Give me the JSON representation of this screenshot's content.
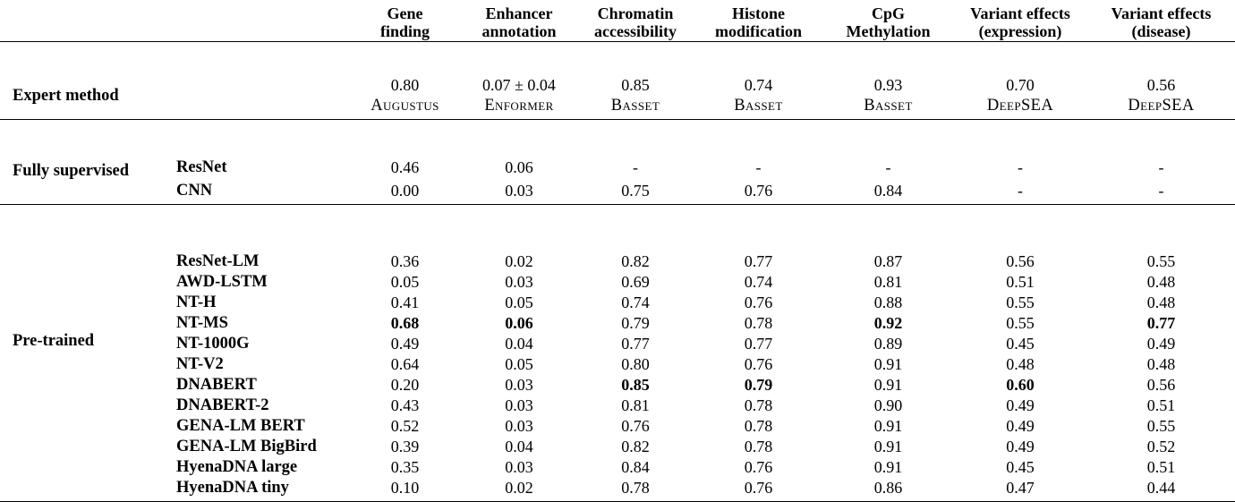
{
  "table": {
    "headers": [
      {
        "l1": "Gene",
        "l2": "finding"
      },
      {
        "l1": "Enhancer",
        "l2": "annotation"
      },
      {
        "l1": "Chromatin",
        "l2": "accessibility"
      },
      {
        "l1": "Histone",
        "l2": "modification"
      },
      {
        "l1": "CpG",
        "l2": "Methylation"
      },
      {
        "l1": "Variant effects",
        "l2": "(expression)"
      },
      {
        "l1": "Variant effects",
        "l2": "(disease)"
      }
    ],
    "expert": {
      "label": "Expert method",
      "cells": [
        {
          "score": "0.80",
          "method": "Augustus"
        },
        {
          "score": "0.07 ± 0.04",
          "method": "Enformer"
        },
        {
          "score": "0.85",
          "method": "Basset"
        },
        {
          "score": "0.74",
          "method": "Basset"
        },
        {
          "score": "0.93",
          "method": "Basset"
        },
        {
          "score": "0.70",
          "method": "DeepSEA"
        },
        {
          "score": "0.56",
          "method": "DeepSEA"
        }
      ]
    },
    "fully_supervised": {
      "label": "Fully supervised",
      "rows": [
        {
          "model": "ResNet",
          "values": [
            "0.46",
            "0.06",
            "-",
            "-",
            "-",
            "-",
            "-"
          ],
          "bold": []
        },
        {
          "model": "CNN",
          "values": [
            "0.00",
            "0.03",
            "0.75",
            "0.76",
            "0.84",
            "-",
            "-"
          ],
          "bold": []
        }
      ]
    },
    "pretrained": {
      "label": "Pre-trained",
      "rows": [
        {
          "model": "ResNet-LM",
          "values": [
            "0.36",
            "0.02",
            "0.82",
            "0.77",
            "0.87",
            "0.56",
            "0.55"
          ],
          "bold": []
        },
        {
          "model": "AWD-LSTM",
          "values": [
            "0.05",
            "0.03",
            "0.69",
            "0.74",
            "0.81",
            "0.51",
            "0.48"
          ],
          "bold": []
        },
        {
          "model": "NT-H",
          "values": [
            "0.41",
            "0.05",
            "0.74",
            "0.76",
            "0.88",
            "0.55",
            "0.48"
          ],
          "bold": []
        },
        {
          "model": "NT-MS",
          "values": [
            "0.68",
            "0.06",
            "0.79",
            "0.78",
            "0.92",
            "0.55",
            "0.77"
          ],
          "bold": [
            0,
            1,
            4,
            6
          ]
        },
        {
          "model": "NT-1000G",
          "values": [
            "0.49",
            "0.04",
            "0.77",
            "0.77",
            "0.89",
            "0.45",
            "0.49"
          ],
          "bold": []
        },
        {
          "model": "NT-V2",
          "values": [
            "0.64",
            "0.05",
            "0.80",
            "0.76",
            "0.91",
            "0.48",
            "0.48"
          ],
          "bold": []
        },
        {
          "model": "DNABERT",
          "values": [
            "0.20",
            "0.03",
            "0.85",
            "0.79",
            "0.91",
            "0.60",
            "0.56"
          ],
          "bold": [
            2,
            3,
            5
          ]
        },
        {
          "model": "DNABERT-2",
          "values": [
            "0.43",
            "0.03",
            "0.81",
            "0.78",
            "0.90",
            "0.49",
            "0.51"
          ],
          "bold": []
        },
        {
          "model": "GENA-LM BERT",
          "values": [
            "0.52",
            "0.03",
            "0.76",
            "0.78",
            "0.91",
            "0.49",
            "0.55"
          ],
          "bold": []
        },
        {
          "model": "GENA-LM BigBird",
          "values": [
            "0.39",
            "0.04",
            "0.82",
            "0.78",
            "0.91",
            "0.49",
            "0.52"
          ],
          "bold": []
        },
        {
          "model": "HyenaDNA large",
          "values": [
            "0.35",
            "0.03",
            "0.84",
            "0.76",
            "0.91",
            "0.45",
            "0.51"
          ],
          "bold": []
        },
        {
          "model": "HyenaDNA tiny",
          "values": [
            "0.10",
            "0.02",
            "0.78",
            "0.76",
            "0.86",
            "0.47",
            "0.44"
          ],
          "bold": []
        }
      ]
    }
  }
}
